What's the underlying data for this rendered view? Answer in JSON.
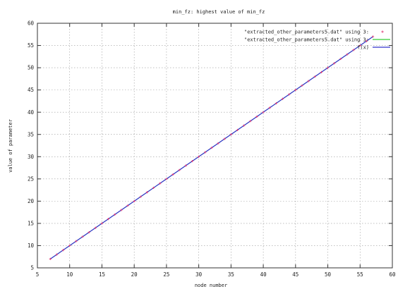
{
  "chart_data": {
    "type": "line",
    "title": "min_fz: highest value of min_fz",
    "xlabel": "node number",
    "ylabel": "value of parameter",
    "xlim": [
      5,
      60
    ],
    "ylim": [
      5,
      60
    ],
    "xticks": [
      5,
      10,
      15,
      20,
      25,
      30,
      35,
      40,
      45,
      50,
      55,
      60
    ],
    "yticks": [
      5,
      10,
      15,
      20,
      25,
      30,
      35,
      40,
      45,
      50,
      55,
      60
    ],
    "grid": true,
    "legend_position": "top-right",
    "x": [
      7,
      8,
      9,
      10,
      11,
      12,
      13,
      14,
      15,
      16,
      17,
      18,
      19,
      20,
      21,
      22,
      23,
      24,
      25,
      26,
      27,
      28,
      29,
      30,
      31,
      32,
      33,
      34,
      35,
      36,
      37,
      38,
      39,
      40,
      41,
      42,
      43,
      44,
      45,
      46,
      47,
      48,
      49,
      50,
      51,
      52,
      53,
      54,
      55,
      56,
      57
    ],
    "series": [
      {
        "name": "\"extracted_other_parameters5.dat\" using 3:",
        "style": "points",
        "color": "#e0407a",
        "values": [
          7,
          8,
          9,
          10,
          11,
          12,
          13,
          14,
          15,
          16,
          17,
          18,
          19,
          20,
          21,
          22,
          23,
          24,
          25,
          26,
          27,
          28,
          29,
          30,
          31,
          32,
          33,
          34,
          35,
          36,
          37,
          38,
          39,
          40,
          41,
          42,
          43,
          44,
          45,
          46,
          47,
          48,
          49,
          50,
          51,
          52,
          53,
          54,
          55,
          56,
          57
        ]
      },
      {
        "name": "\"extracted_other_parameters5.dat\" using 3:",
        "style": "line",
        "color": "#33cc33",
        "values": [
          7,
          8,
          9,
          10,
          11,
          12,
          13,
          14,
          15,
          16,
          17,
          18,
          19,
          20,
          21,
          22,
          23,
          24,
          25,
          26,
          27,
          28,
          29,
          30,
          31,
          32,
          33,
          34,
          35,
          36,
          37,
          38,
          39,
          40,
          41,
          42,
          43,
          44,
          45,
          46,
          47,
          48,
          49,
          50,
          51,
          52,
          53,
          54,
          55,
          56,
          57
        ]
      },
      {
        "name": "f(x)",
        "style": "line",
        "color": "#3333cc",
        "values": [
          7,
          8,
          9,
          10,
          11,
          12,
          13,
          14,
          15,
          16,
          17,
          18,
          19,
          20,
          21,
          22,
          23,
          24,
          25,
          26,
          27,
          28,
          29,
          30,
          31,
          32,
          33,
          34,
          35,
          36,
          37,
          38,
          39,
          40,
          41,
          42,
          43,
          44,
          45,
          46,
          47,
          48,
          49,
          50,
          51,
          52,
          53,
          54,
          55,
          56,
          57
        ]
      }
    ]
  }
}
